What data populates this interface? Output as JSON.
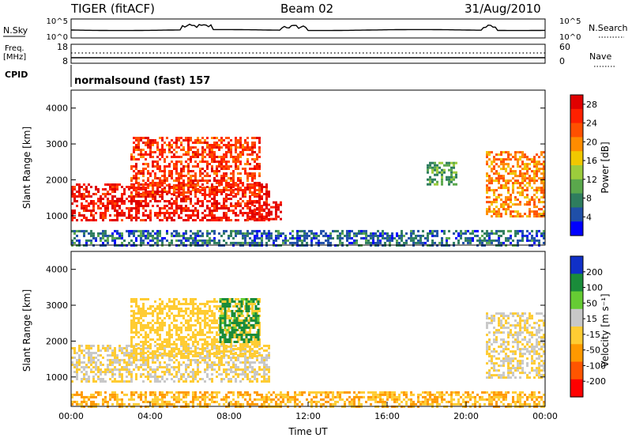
{
  "header": {
    "station": "TIGER (fitACF)",
    "beam": "Beam 02",
    "date": "31/Aug/2010"
  },
  "top_panels": {
    "nsky_label": "N.Sky",
    "nsearch_label": "N.Search",
    "nsky_ticks": [
      "10^5",
      "10^0"
    ],
    "nsky_right_ticks": [
      "10^5",
      "10^0"
    ],
    "freq_label_1": "Freq.",
    "freq_label_2": "[MHz]",
    "freq_ticks": [
      "18",
      "8"
    ],
    "nave_label": "Nave",
    "nave_ticks": [
      "60",
      "0"
    ],
    "cpid_label": "CPID",
    "cpid_text": "normalsound (fast) 157"
  },
  "colors": {
    "power_scale": [
      "#0000ff",
      "#1f4fa8",
      "#2e7d5e",
      "#5aa84c",
      "#9ccc3c",
      "#f0c800",
      "#ff8c00",
      "#ff5000",
      "#ff2000",
      "#e00000"
    ],
    "velocity_scale": [
      "#1030c8",
      "#1a8c3a",
      "#66cc33",
      "#c8c8c8",
      "#ffcc33",
      "#ff9900",
      "#ff5500",
      "#ff0000"
    ]
  },
  "chart_data": [
    {
      "type": "heatmap",
      "name_key": "power",
      "ylabel": "Slant Range [km]",
      "xlabel": "",
      "xlim": [
        0,
        24
      ],
      "ylim": [
        180,
        4500
      ],
      "yticks": [
        "1000",
        "2000",
        "3000",
        "4000"
      ],
      "colorbar_label": "Power [dB]",
      "colorbar_ticks": [
        "4",
        "8",
        "12",
        "16",
        "20",
        "24",
        "28"
      ],
      "colorbar_range": [
        0,
        30
      ],
      "regions": [
        {
          "t0": 0.0,
          "t1": 10.0,
          "r0": 900,
          "r1": 1900,
          "value": 27
        },
        {
          "t0": 3.0,
          "t1": 9.5,
          "r0": 1600,
          "r1": 3200,
          "value": 24
        },
        {
          "t0": 9.0,
          "t1": 10.6,
          "r0": 900,
          "r1": 1400,
          "value": 28
        },
        {
          "t0": 21.0,
          "t1": 24.0,
          "r0": 1000,
          "r1": 2800,
          "value": 20
        },
        {
          "t0": 18.0,
          "t1": 19.5,
          "r0": 1900,
          "r1": 2500,
          "value": 10
        },
        {
          "t0": 0.0,
          "t1": 24.0,
          "r0": 180,
          "r1": 600,
          "value": 6
        }
      ]
    },
    {
      "type": "heatmap",
      "name_key": "velocity",
      "ylabel": "Slant Range [km]",
      "xlabel": "Time UT",
      "xlim": [
        0,
        24
      ],
      "ylim": [
        180,
        4500
      ],
      "yticks": [
        "1000",
        "2000",
        "3000",
        "4000"
      ],
      "xticks": [
        "00:00",
        "04:00",
        "08:00",
        "12:00",
        "16:00",
        "20:00",
        "00:00"
      ],
      "colorbar_label": "Velocity [m s⁻¹]",
      "colorbar_ticks": [
        "200",
        "100",
        "50",
        "15",
        "-15",
        "-50",
        "-100",
        "-200"
      ],
      "colorbar_range": [
        -250,
        250
      ],
      "regions": [
        {
          "t0": 0.0,
          "t1": 10.0,
          "r0": 900,
          "r1": 1900,
          "value": 0
        },
        {
          "t0": 3.0,
          "t1": 9.5,
          "r0": 1600,
          "r1": 3200,
          "value": -30
        },
        {
          "t0": 7.5,
          "t1": 9.5,
          "r0": 2000,
          "r1": 3200,
          "value": 150
        },
        {
          "t0": 21.0,
          "t1": 24.0,
          "r0": 1000,
          "r1": 2800,
          "value": 0
        },
        {
          "t0": 0.0,
          "t1": 24.0,
          "r0": 180,
          "r1": 600,
          "value": -60
        }
      ]
    }
  ]
}
